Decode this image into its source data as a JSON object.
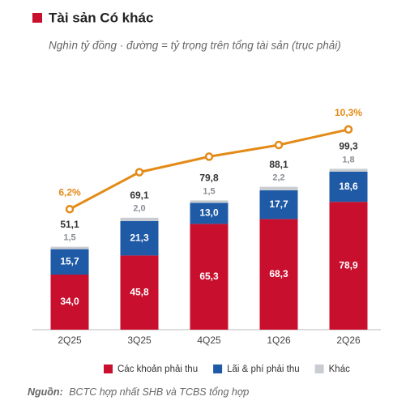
{
  "chart_data": {
    "type": "stacked_bar_line",
    "title": "Tài sản Có khác",
    "subtitle": "Nghìn tỷ đồng · đường = tỷ trọng trên tổng tài sản (trục phải)",
    "source_label": "Nguồn:",
    "source": "BCTC hợp nhất SHB và TCBS tổng hợp",
    "categories": [
      "2Q25",
      "3Q25",
      "4Q25",
      "1Q26",
      "2Q26"
    ],
    "series": [
      {
        "name": "Các khoản phải thu",
        "color": "#c8102e",
        "values": [
          34.0,
          45.8,
          65.3,
          68.3,
          78.9
        ],
        "value_labels": [
          "34,0",
          "45,8",
          "65,3",
          "68,3",
          "78,9"
        ]
      },
      {
        "name": "Lãi & phí phải thu",
        "color": "#1f5aa6",
        "values": [
          15.7,
          21.3,
          13.0,
          17.7,
          18.6
        ],
        "value_labels": [
          "15,7",
          "21,3",
          "13,0",
          "17,7",
          "18,6"
        ]
      },
      {
        "name": "Khác",
        "color": "#c9cdd2",
        "values": [
          1.5,
          2.0,
          1.5,
          2.2,
          1.8
        ],
        "value_labels": [
          "1,5",
          "2,0",
          "1,5",
          "2,2",
          "1,8"
        ]
      },
      {
        "type": "line",
        "axis": "y2",
        "color": "#e38a17",
        "values": [
          6.2,
          8.1,
          8.9,
          9.5,
          10.3
        ],
        "value_labels": [
          "6,2%",
          null,
          null,
          null,
          "10,3%"
        ]
      }
    ],
    "totals": {
      "values": [
        51.1,
        69.1,
        79.8,
        88.1,
        99.3
      ],
      "value_labels": [
        "51,1",
        "69,1",
        "79,8",
        "88,1",
        "99,3"
      ]
    },
    "ylim": [
      0,
      144
    ],
    "y2lim": [
      0,
      12
    ],
    "legend": "bottom"
  }
}
